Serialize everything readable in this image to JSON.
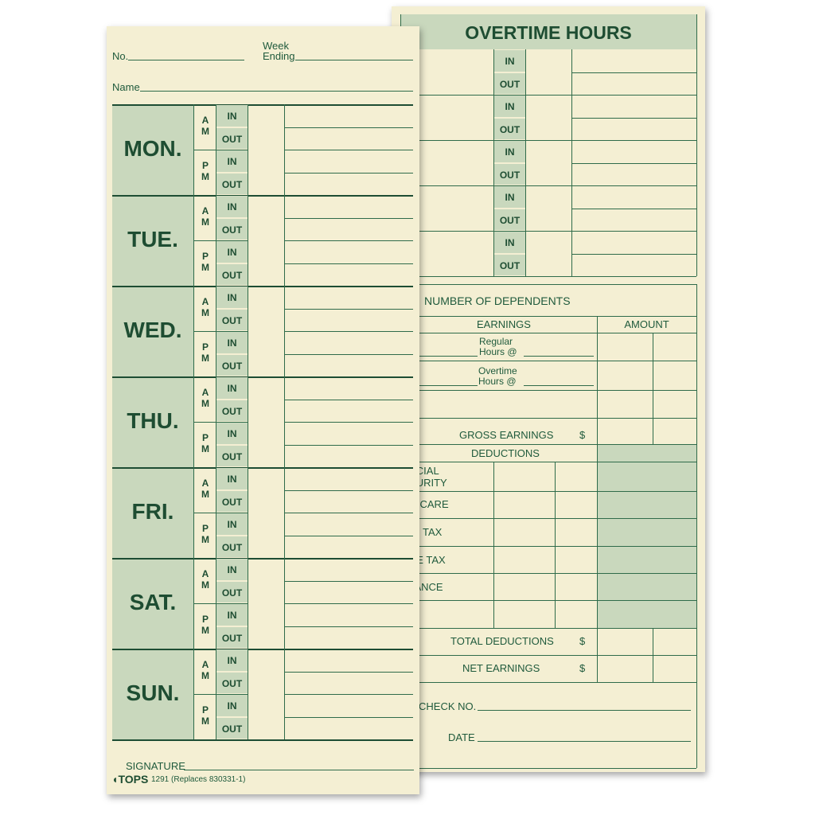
{
  "left_card": {
    "no_label": "No.",
    "week_label": "Week",
    "ending_label": "Ending",
    "name_label": "Name",
    "days": [
      "MON.",
      "TUE.",
      "WED.",
      "THU.",
      "FRI.",
      "SAT.",
      "SUN."
    ],
    "am": [
      "A",
      "M"
    ],
    "pm": [
      "P",
      "M"
    ],
    "in_label": "IN",
    "out_label": "OUT",
    "signature_label": "SIGNATURE",
    "brand": "TOPS",
    "form_code": "1291 (Replaces 830331-1)"
  },
  "right_card": {
    "title": "OVERTIME HOURS",
    "in_label": "IN",
    "out_label": "OUT",
    "dependents_label": "NUMBER OF DEPENDENTS",
    "earnings_header": "EARNINGS",
    "amount_header": "AMOUNT",
    "regular_label_1": "Regular",
    "regular_label_2": "Hours @",
    "overtime_label_1": "Overtime",
    "overtime_label_2": "Hours @",
    "gross_label": "GROSS EARNINGS",
    "dollar": "$",
    "deductions_header": "DEDUCTIONS",
    "deductions": [
      "SOCIAL",
      "SECURITY",
      "MEDICARE",
      "FED. TAX",
      "STATE TAX",
      "INSURANCE"
    ],
    "total_deductions_label": "TOTAL DEDUCTIONS",
    "net_earnings_label": "NET EARNINGS",
    "check_no_label": "CHECK NO.",
    "date_label": "DATE"
  },
  "colors": {
    "paper": "#f4efd3",
    "shade": "#c9d8bd",
    "ink": "#1f5a3c"
  }
}
